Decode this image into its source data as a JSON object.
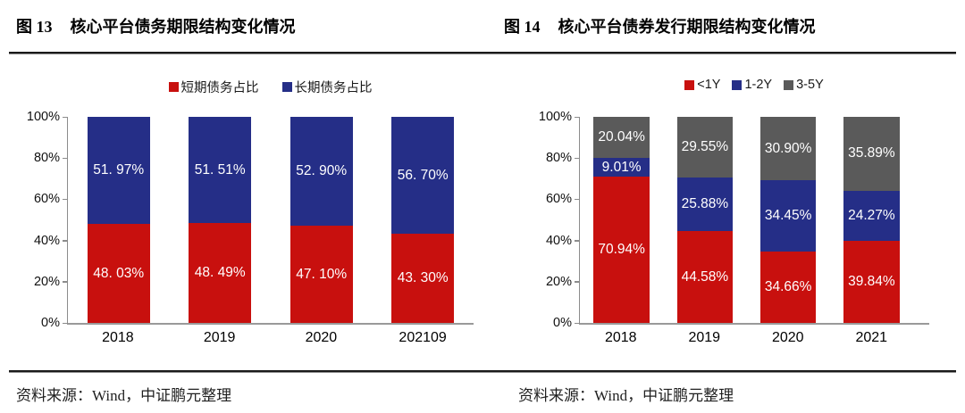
{
  "figures": [
    {
      "number": "图 13",
      "title": "核心平台债务期限结构变化情况",
      "source": "资料来源：Wind，中证鹏元整理"
    },
    {
      "number": "图 14",
      "title": "核心平台债券发行期限结构变化情况",
      "source": "资料来源：Wind，中证鹏元整理"
    }
  ],
  "colors": {
    "red": "#c8100e",
    "blue": "#252e87",
    "gray": "#5a5a5a",
    "axis": "#8c8c8c",
    "rule": "#1a1a1a",
    "data_label": "#ffffff"
  },
  "chart_data": [
    {
      "type": "bar",
      "stacked": true,
      "title": "图 13 核心平台债务期限结构变化情况",
      "categories": [
        "2018",
        "2019",
        "2020",
        "202109"
      ],
      "series": [
        {
          "name": "短期债务占比",
          "color": "#c8100e",
          "values": [
            48.03,
            48.49,
            47.1,
            43.3
          ],
          "labels": [
            "48. 03%",
            "48. 49%",
            "47. 10%",
            "43. 30%"
          ]
        },
        {
          "name": "长期债务占比",
          "color": "#252e87",
          "values": [
            51.97,
            51.51,
            52.9,
            56.7
          ],
          "labels": [
            "51. 97%",
            "51. 51%",
            "52. 90%",
            "56. 70%"
          ]
        }
      ],
      "xlabel": "",
      "ylabel": "",
      "ylim": [
        0,
        100
      ],
      "yticks": [
        0,
        20,
        40,
        60,
        80,
        100
      ],
      "ytick_labels": [
        "0%",
        "20%",
        "40%",
        "60%",
        "80%",
        "100%"
      ],
      "grid": false,
      "legend_position": "top"
    },
    {
      "type": "bar",
      "stacked": true,
      "title": "图 14 核心平台债券发行期限结构变化情况",
      "categories": [
        "2018",
        "2019",
        "2020",
        "2021"
      ],
      "series": [
        {
          "name": "<1Y",
          "color": "#c8100e",
          "values": [
            70.94,
            44.58,
            34.66,
            39.84
          ],
          "labels": [
            "70.94%",
            "44.58%",
            "34.66%",
            "39.84%"
          ]
        },
        {
          "name": "1-2Y",
          "color": "#252e87",
          "values": [
            9.01,
            25.88,
            34.45,
            24.27
          ],
          "labels": [
            "9.01%",
            "25.88%",
            "34.45%",
            "24.27%"
          ]
        },
        {
          "name": "3-5Y",
          "color": "#5a5a5a",
          "values": [
            20.04,
            29.55,
            30.9,
            35.89
          ],
          "labels": [
            "20.04%",
            "29.55%",
            "30.90%",
            "35.89%"
          ]
        }
      ],
      "xlabel": "",
      "ylabel": "",
      "ylim": [
        0,
        100
      ],
      "yticks": [
        0,
        20,
        40,
        60,
        80,
        100
      ],
      "ytick_labels": [
        "0%",
        "20%",
        "40%",
        "60%",
        "80%",
        "100%"
      ],
      "grid": false,
      "legend_position": "top"
    }
  ]
}
